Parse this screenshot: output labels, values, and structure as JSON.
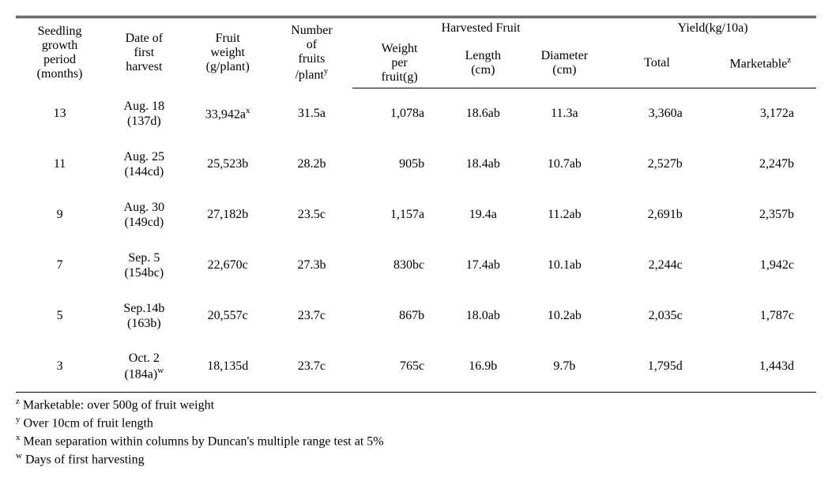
{
  "headers": {
    "seedling": "Seedling\ngrowth\nperiod\n(months)",
    "date": "Date of\nfirst\nharvest",
    "fruitweight": "Fruit\nweight\n(g/plant)",
    "numfruits": "Number\nof\nfruits\n/plant",
    "numfruits_sup": "y",
    "harvested_group": "Harvested Fruit",
    "weightper": "Weight\nper\nfruit(g)",
    "length": "Length\n(cm)",
    "diameter": "Diameter\n(cm)",
    "yield_group": "Yield(kg/10a)",
    "total": "Total",
    "marketable": "Marketable",
    "marketable_sup": "z"
  },
  "rows": [
    {
      "seedling": "13",
      "date_main": "Aug. 18",
      "date_sub": "(137d)",
      "fruitweight": "33,942a",
      "fruitweight_sup": "x",
      "numfruits": "31.5a",
      "weightper": "1,078a",
      "length": "18.6ab",
      "diameter": "11.3a",
      "total": "3,360a",
      "marketable": "3,172a"
    },
    {
      "seedling": "11",
      "date_main": "Aug. 25",
      "date_sub": "(144cd)",
      "fruitweight": "25,523b",
      "fruitweight_sup": "",
      "numfruits": "28.2b",
      "weightper": "905b",
      "length": "18.4ab",
      "diameter": "10.7ab",
      "total": "2,527b",
      "marketable": "2,247b"
    },
    {
      "seedling": "9",
      "date_main": "Aug. 30",
      "date_sub": "(149cd)",
      "fruitweight": "27,182b",
      "fruitweight_sup": "",
      "numfruits": "23.5c",
      "weightper": "1,157a",
      "length": "19.4a",
      "diameter": "11.2ab",
      "total": "2,691b",
      "marketable": "2,357b"
    },
    {
      "seedling": "7",
      "date_main": "Sep. 5",
      "date_sub": "(154bc)",
      "fruitweight": "22,670c",
      "fruitweight_sup": "",
      "numfruits": "27.3b",
      "weightper": "830bc",
      "length": "17.4ab",
      "diameter": "10.1ab",
      "total": "2,244c",
      "marketable": "1,942c"
    },
    {
      "seedling": "5",
      "date_main": "Sep.14b",
      "date_sub": "(163b)",
      "fruitweight": "20,557c",
      "fruitweight_sup": "",
      "numfruits": "23.7c",
      "weightper": "867b",
      "length": "18.0ab",
      "diameter": "10.2ab",
      "total": "2,035c",
      "marketable": "1,787c"
    },
    {
      "seedling": "3",
      "date_main": "Oct. 2",
      "date_sub": "(184a)",
      "date_sub_sup": "w",
      "fruitweight": "18,135d",
      "fruitweight_sup": "",
      "numfruits": "23.7c",
      "weightper": "765c",
      "length": "16.9b",
      "diameter": "9.7b",
      "total": "1,795d",
      "marketable": "1,443d"
    }
  ],
  "footnotes": {
    "z": "Marketable: over 500g of fruit weight",
    "y": "Over 10cm of fruit length",
    "x": "Mean separation within columns by Duncan's multiple range test at 5%",
    "w": "Days of first harvesting"
  }
}
